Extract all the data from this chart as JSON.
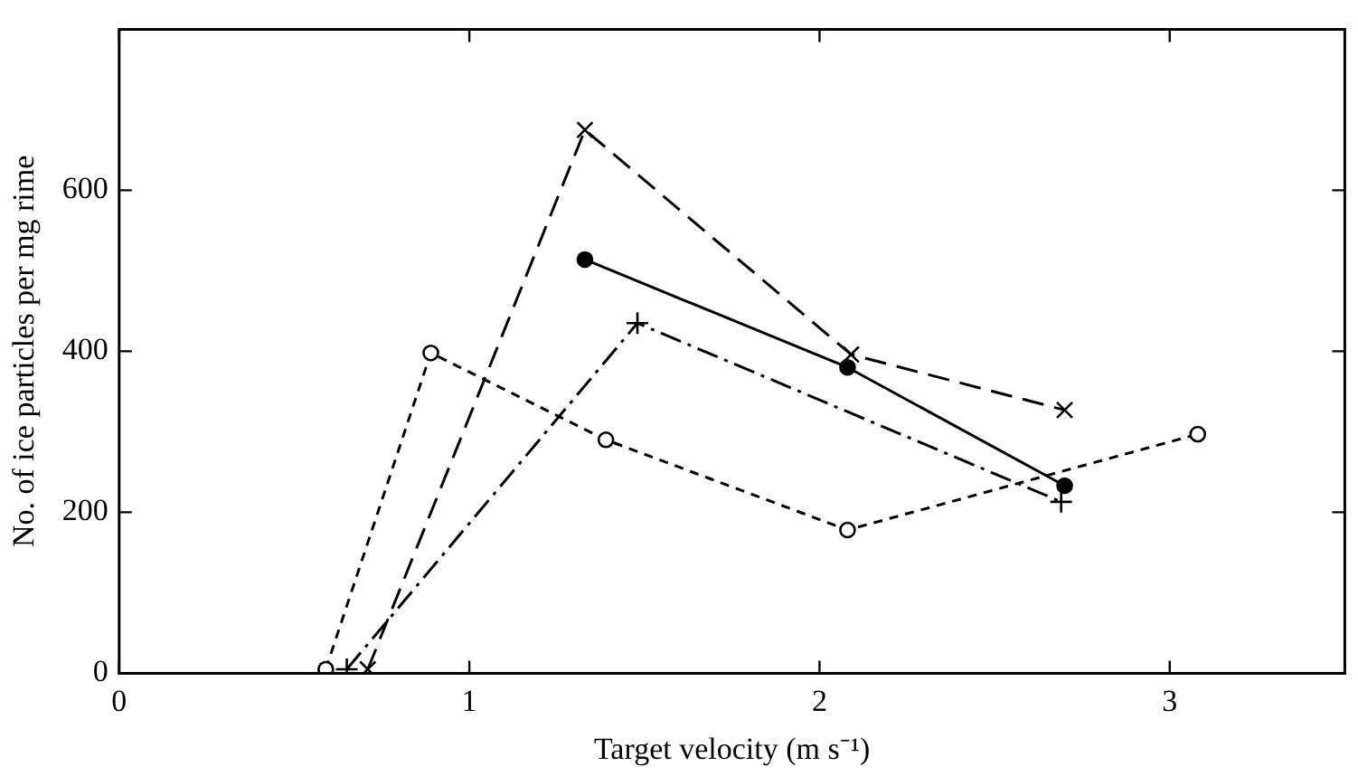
{
  "chart_data": {
    "type": "line",
    "xlabel": "Target velocity (m s⁻¹)",
    "ylabel": "No. of ice particles per mg rime",
    "xlim": [
      0,
      3.5
    ],
    "ylim": [
      0,
      800
    ],
    "xticks": [
      0,
      1,
      2,
      3
    ],
    "yticks": [
      0,
      200,
      400,
      600
    ],
    "grid": false,
    "legend": false,
    "series": [
      {
        "x": [
          0.59,
          0.89,
          1.39,
          2.08,
          3.08
        ],
        "values": [
          5,
          398,
          290,
          178,
          297
        ],
        "color": "#000000",
        "marker": "circle",
        "line_style": "dotted"
      },
      {
        "x": [
          0.71,
          1.33,
          2.09,
          2.7
        ],
        "values": [
          5,
          675,
          396,
          327
        ],
        "color": "#000000",
        "marker": "cross",
        "line_style": "dashed"
      },
      {
        "x": [
          1.33,
          2.08,
          2.7
        ],
        "values": [
          514,
          380,
          233
        ],
        "color": "#000000",
        "marker": "circle",
        "line_style": "solid"
      },
      {
        "x": [
          0.65,
          1.48,
          2.69
        ],
        "values": [
          5,
          435,
          213
        ],
        "color": "#000000",
        "marker": "plus",
        "line_style": "dashdot"
      }
    ]
  }
}
